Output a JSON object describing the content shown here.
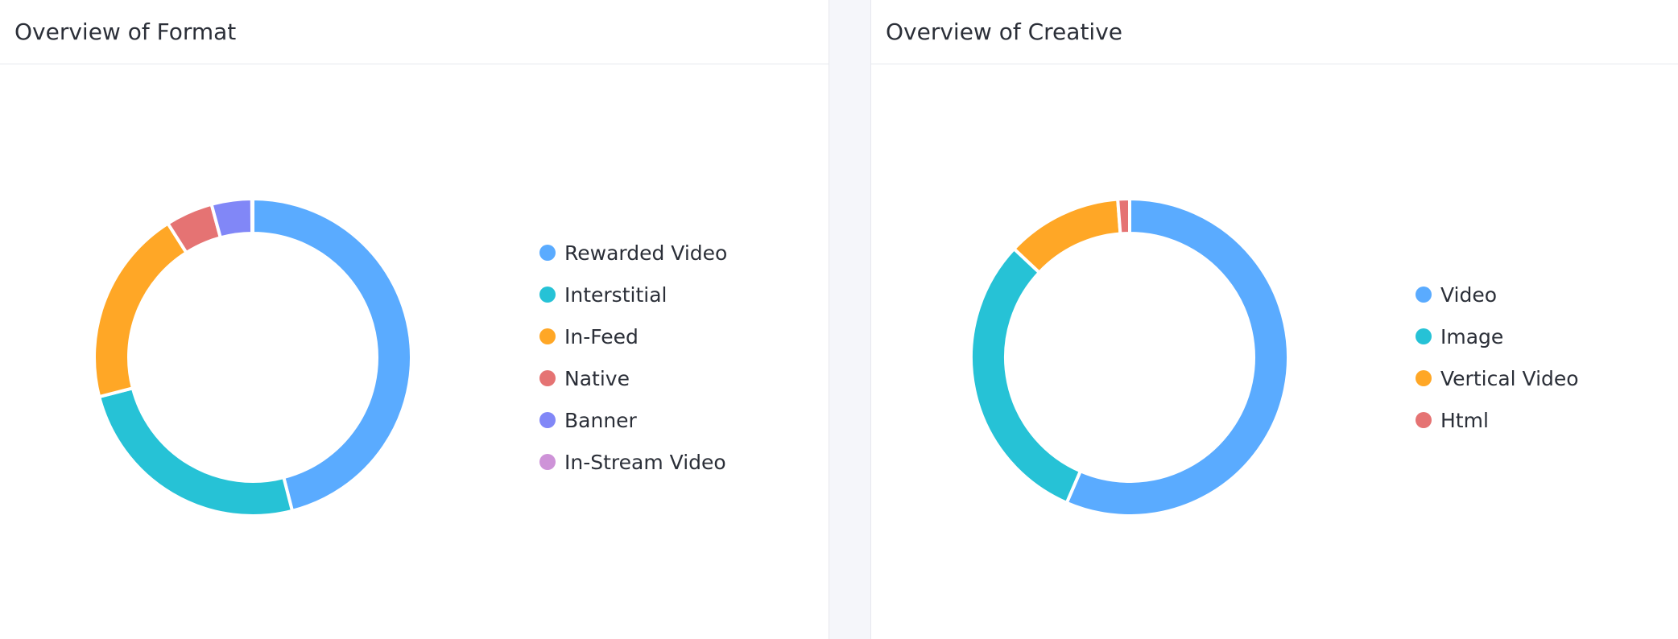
{
  "chart_data": [
    {
      "type": "pie",
      "title": "Overview of Format",
      "categories": [
        "Rewarded Video",
        "Interstitial",
        "In-Feed",
        "Native",
        "Banner",
        "In-Stream Video"
      ],
      "values": [
        46,
        25,
        20,
        4.8,
        4.1,
        0.1
      ],
      "colors": [
        "#5aabff",
        "#26c2d6",
        "#ffa726",
        "#e57373",
        "#8187f7",
        "#ce93d8"
      ],
      "legend": "right"
    },
    {
      "type": "pie",
      "title": "Overview of Creative",
      "categories": [
        "Video",
        "Image",
        "Vertical Video",
        "Html"
      ],
      "values": [
        56.5,
        30.5,
        11.8,
        1.2
      ],
      "colors": [
        "#5aabff",
        "#26c2d6",
        "#ffa726",
        "#e57373"
      ],
      "legend": "right"
    }
  ]
}
